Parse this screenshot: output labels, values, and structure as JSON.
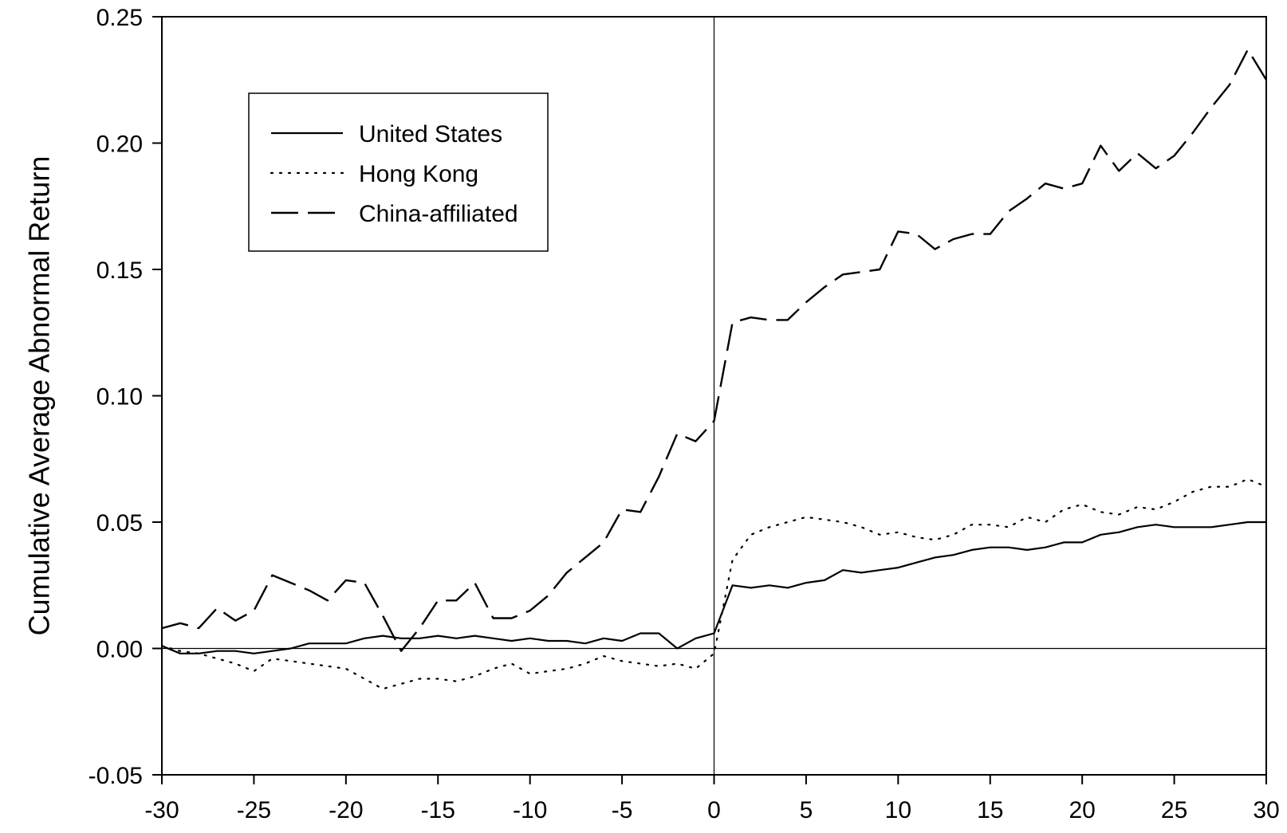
{
  "chart_data": {
    "type": "line",
    "title": "",
    "xlabel": "",
    "ylabel": "Cumulative Average Abnormal Return",
    "xlim": [
      -30,
      30
    ],
    "ylim": [
      -0.05,
      0.25
    ],
    "xticks": [
      -30,
      -25,
      -20,
      -15,
      -10,
      -5,
      0,
      5,
      10,
      15,
      20,
      25,
      30
    ],
    "xtick_labels": [
      "-30",
      "-25",
      "-20",
      "-15",
      "-10",
      "-5",
      "0",
      "5",
      "10",
      "15",
      "20",
      "25",
      "30"
    ],
    "yticks": [
      -0.05,
      0.0,
      0.05,
      0.1,
      0.15,
      0.2,
      0.25
    ],
    "ytick_labels": [
      "-0.05",
      "0.00",
      "0.05",
      "0.10",
      "0.15",
      "0.20",
      "0.25"
    ],
    "grid": false,
    "legend_position": "top-left",
    "reference_lines": {
      "horizontal_at_y": 0,
      "vertical_at_x": 0
    },
    "x": [
      -30,
      -29,
      -28,
      -27,
      -26,
      -25,
      -24,
      -23,
      -22,
      -21,
      -20,
      -19,
      -18,
      -17,
      -16,
      -15,
      -14,
      -13,
      -12,
      -11,
      -10,
      -9,
      -8,
      -7,
      -6,
      -5,
      -4,
      -3,
      -2,
      -1,
      0,
      1,
      2,
      3,
      4,
      5,
      6,
      7,
      8,
      9,
      10,
      11,
      12,
      13,
      14,
      15,
      16,
      17,
      18,
      19,
      20,
      21,
      22,
      23,
      24,
      25,
      26,
      27,
      28,
      29,
      30
    ],
    "series": [
      {
        "name": "United States",
        "style": "solid",
        "values": [
          0.001,
          -0.002,
          -0.002,
          -0.001,
          -0.001,
          -0.002,
          -0.001,
          0.0,
          0.002,
          0.002,
          0.002,
          0.004,
          0.005,
          0.004,
          0.004,
          0.005,
          0.004,
          0.005,
          0.004,
          0.003,
          0.004,
          0.003,
          0.003,
          0.002,
          0.004,
          0.003,
          0.006,
          0.006,
          0.0,
          0.004,
          0.006,
          0.025,
          0.024,
          0.025,
          0.024,
          0.026,
          0.027,
          0.031,
          0.03,
          0.031,
          0.032,
          0.034,
          0.036,
          0.037,
          0.039,
          0.04,
          0.04,
          0.039,
          0.04,
          0.042,
          0.042,
          0.045,
          0.046,
          0.048,
          0.049,
          0.048,
          0.048,
          0.048,
          0.049,
          0.05,
          0.05
        ]
      },
      {
        "name": "Hong Kong",
        "style": "dotted",
        "values": [
          0.001,
          -0.001,
          -0.002,
          -0.004,
          -0.006,
          -0.009,
          -0.004,
          -0.005,
          -0.006,
          -0.007,
          -0.008,
          -0.012,
          -0.016,
          -0.014,
          -0.012,
          -0.012,
          -0.013,
          -0.011,
          -0.008,
          -0.006,
          -0.01,
          -0.009,
          -0.008,
          -0.006,
          -0.003,
          -0.005,
          -0.006,
          -0.007,
          -0.006,
          -0.008,
          -0.002,
          0.035,
          0.045,
          0.048,
          0.05,
          0.052,
          0.051,
          0.05,
          0.048,
          0.045,
          0.046,
          0.044,
          0.043,
          0.045,
          0.049,
          0.049,
          0.048,
          0.052,
          0.05,
          0.055,
          0.057,
          0.054,
          0.053,
          0.056,
          0.055,
          0.058,
          0.062,
          0.064,
          0.064,
          0.067,
          0.064
        ]
      },
      {
        "name": "China-affiliated",
        "style": "dashed",
        "values": [
          0.008,
          0.01,
          0.008,
          0.016,
          0.011,
          0.015,
          0.029,
          0.026,
          0.023,
          0.019,
          0.027,
          0.026,
          0.013,
          -0.001,
          0.008,
          0.019,
          0.019,
          0.026,
          0.012,
          0.012,
          0.015,
          0.021,
          0.03,
          0.036,
          0.042,
          0.055,
          0.054,
          0.068,
          0.085,
          0.082,
          0.09,
          0.129,
          0.131,
          0.13,
          0.13,
          0.137,
          0.143,
          0.148,
          0.149,
          0.15,
          0.165,
          0.164,
          0.158,
          0.162,
          0.164,
          0.164,
          0.173,
          0.178,
          0.184,
          0.182,
          0.184,
          0.199,
          0.189,
          0.196,
          0.19,
          0.195,
          0.204,
          0.214,
          0.223,
          0.237,
          0.225
        ]
      }
    ]
  }
}
